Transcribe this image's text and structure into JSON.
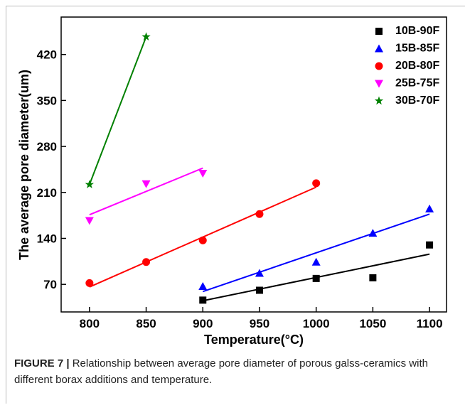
{
  "chart_data": {
    "type": "scatter",
    "x_label": "Temperature(°C)",
    "y_label": "The average pore diameter(um)",
    "xlim": [
      775,
      1115
    ],
    "ylim": [
      28,
      477
    ],
    "xticks": [
      800,
      850,
      900,
      950,
      1000,
      1050,
      1100
    ],
    "yticks": [
      70,
      140,
      210,
      280,
      350,
      420
    ],
    "legend": "upper right",
    "series": [
      {
        "name": "10B-90F",
        "color": "#000000",
        "marker": "square",
        "x": [
          900,
          950,
          1000,
          1050,
          1100
        ],
        "values": [
          46,
          61,
          79,
          80,
          130
        ],
        "fit_x": [
          900,
          1100
        ],
        "fit_values": [
          45,
          116
        ]
      },
      {
        "name": "15B-85F",
        "color": "#0000ff",
        "marker": "triangle-up",
        "x": [
          900,
          950,
          1000,
          1050,
          1100
        ],
        "values": [
          67,
          87,
          104,
          148,
          185
        ],
        "fit_x": [
          900,
          1100
        ],
        "fit_values": [
          59,
          177
        ]
      },
      {
        "name": "20B-80F",
        "color": "#ff0000",
        "marker": "circle",
        "x": [
          800,
          850,
          900,
          950,
          1000
        ],
        "values": [
          72,
          104,
          137,
          177,
          224
        ],
        "fit_x": [
          800,
          1000
        ],
        "fit_values": [
          66,
          218
        ]
      },
      {
        "name": "25B-75F",
        "color": "#ff00ff",
        "marker": "triangle-down",
        "x": [
          800,
          850,
          900
        ],
        "values": [
          167,
          223,
          239
        ],
        "fit_x": [
          800,
          900
        ],
        "fit_values": [
          176,
          247
        ]
      },
      {
        "name": "30B-70F",
        "color": "#008000",
        "marker": "star",
        "x": [
          800,
          850
        ],
        "values": [
          222,
          447
        ],
        "fit_x": [
          800,
          850
        ],
        "fit_values": [
          222,
          447
        ]
      }
    ]
  },
  "caption": {
    "label": "FIGURE 7 |",
    "text": "Relationship between average pore diameter of porous galss-ceramics with different borax additions and temperature."
  }
}
